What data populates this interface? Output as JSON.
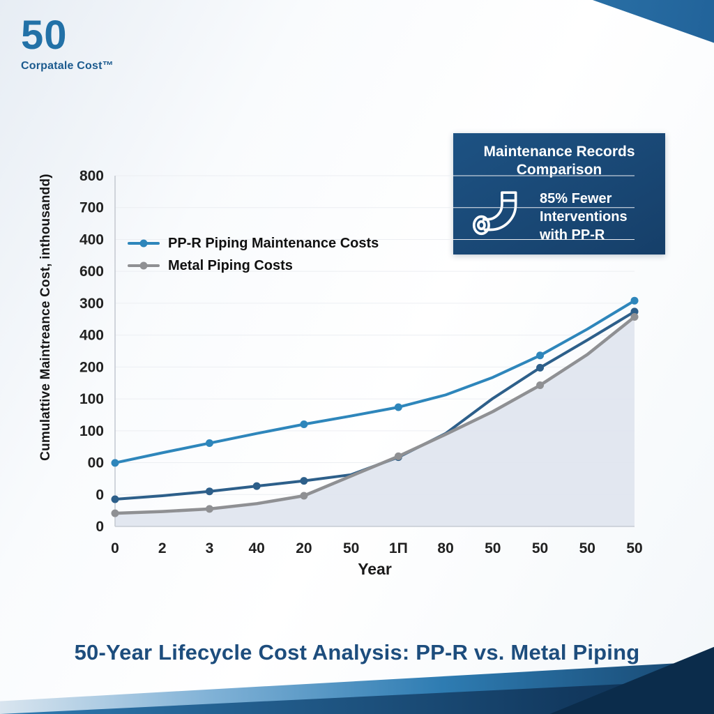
{
  "branding": {
    "logo_number": "50",
    "logo_text": "Corpatale Cost™"
  },
  "info_box": {
    "title": "Maintenance Records Comparison",
    "stat": "85% Fewer Interventions with PP-R",
    "icon": "pipe-fittings-icon",
    "bg_color": "#1a4c7c"
  },
  "legend": {
    "items": [
      {
        "label": "PP-R Piping Maintenance Costs",
        "color": "#2e86bb"
      },
      {
        "label": "Metal Piping Costs",
        "color": "#8f9093"
      }
    ]
  },
  "chart_data": {
    "type": "line",
    "title": "50-Year Lifecycle Cost Analysis: PP-R vs. Metal Piping",
    "xlabel": "Year",
    "ylabel": "Cumulattive Maintreance Cost, inthousandd)",
    "x_tick_labels": [
      "0",
      "2",
      "3",
      "40",
      "20",
      "50",
      "1Π",
      "80",
      "50",
      "50",
      "50",
      "50"
    ],
    "y_tick_labels_top_to_bottom": [
      "800",
      "700",
      "400",
      "600",
      "300",
      "400",
      "200",
      "100",
      "100",
      "00",
      "0",
      "0"
    ],
    "ylim": [
      0,
      800
    ],
    "grid": true,
    "legend_position": "upper-left-inside",
    "area_fill": "#dfe4ee",
    "series": [
      {
        "name": "PP-R Piping Maintenance Costs",
        "color": "#2e86bb",
        "width": 4,
        "area": false,
        "markers": [
          0,
          2,
          4,
          6,
          9,
          11
        ],
        "values": [
          145,
          168,
          190,
          212,
          233,
          252,
          272,
          300,
          340,
          390,
          450,
          515
        ]
      },
      {
        "name": "",
        "color": "#2d5f8a",
        "width": 4,
        "area": false,
        "markers": [
          0,
          2,
          3,
          4,
          6,
          9,
          11
        ],
        "values": [
          62,
          70,
          80,
          92,
          104,
          118,
          158,
          212,
          292,
          362,
          425,
          490
        ]
      },
      {
        "name": "Metal Piping Costs",
        "color": "#8f9093",
        "width": 4.5,
        "area": true,
        "markers": [
          0,
          2,
          4,
          6,
          9,
          11
        ],
        "values": [
          30,
          34,
          40,
          52,
          70,
          115,
          160,
          210,
          262,
          322,
          392,
          478
        ]
      }
    ]
  },
  "footer": {
    "title": "50-Year Lifecycle Cost Analysis: PP-R vs. Metal Piping"
  },
  "colors": {
    "accent_blue": "#2e86bb",
    "navy": "#1d4d7d",
    "box_navy": "#1a4c7c",
    "metal_gray": "#8f9093",
    "area_fill": "#dfe4ee"
  }
}
